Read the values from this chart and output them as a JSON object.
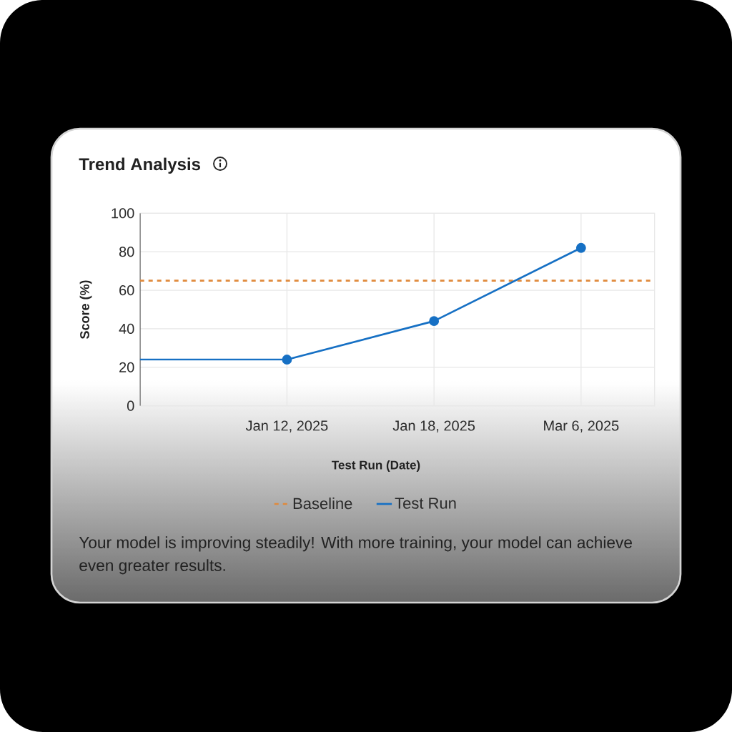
{
  "chart_data": {
    "type": "line",
    "title": "Trend Analysis",
    "xlabel": "Test Run (Date)",
    "ylabel": "Score (%)",
    "annotations": [
      "Your model is improving steadily! With more training, your model can achieve even greater results."
    ],
    "categories": [
      null,
      "Jan 12, 2025",
      "Jan 18, 2025",
      "Mar 6, 2025"
    ],
    "series": [
      {
        "values": [
          24,
          24,
          null,
          null
        ],
        "color": "#1670c4",
        "marker": "none"
      },
      {
        "name": "Test Run",
        "values": [
          null,
          24,
          44,
          82
        ],
        "color": "#1670c4",
        "marker": "circle"
      }
    ],
    "ylim": [
      0,
      100
    ],
    "yticks": [
      0,
      20,
      40,
      60,
      80,
      100
    ],
    "ref_lines": [
      {
        "axis": "y",
        "value": 65,
        "label": "Baseline",
        "color": "#e08a3c",
        "line_style": "dashed"
      }
    ],
    "grid": true,
    "legend": "bottom",
    "line_style": "solid"
  }
}
